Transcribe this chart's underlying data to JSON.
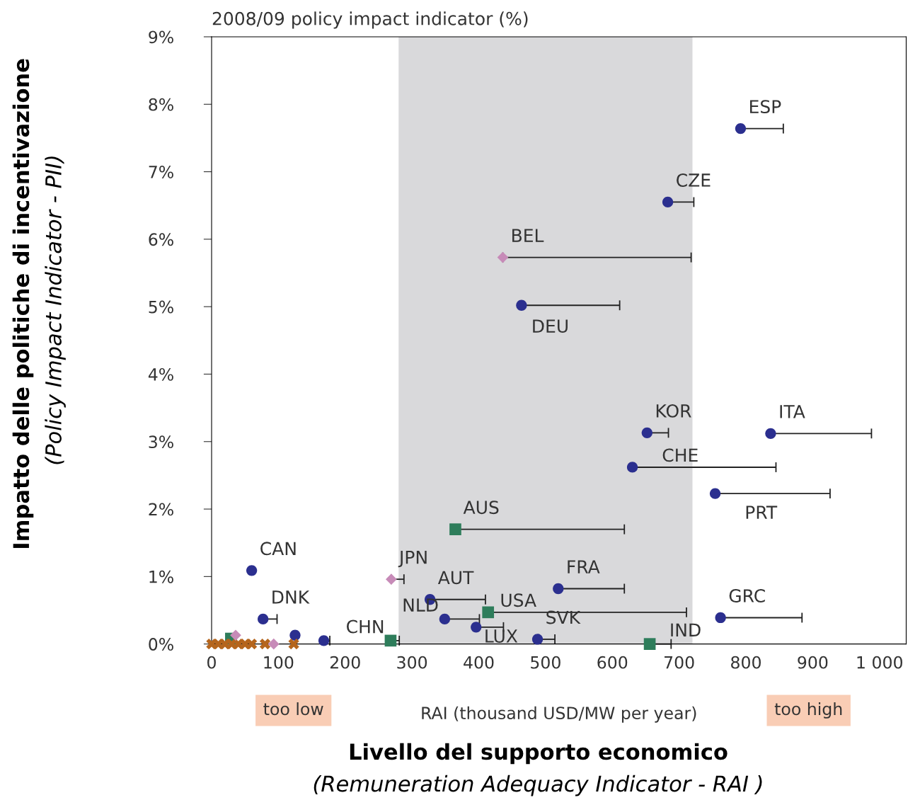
{
  "chart_data": {
    "type": "scatter",
    "title": "2008/09 policy impact indicator (%)",
    "xlabel": "RAI (thousand USD/MW per year)",
    "ylabel": "(Policy Impact Indicator - PII)",
    "xlim": [
      0,
      1040
    ],
    "ylim": [
      0,
      9
    ],
    "xticks": [
      0,
      100,
      200,
      300,
      400,
      500,
      600,
      700,
      800,
      900,
      {
        "value": 1000,
        "label": "1 000"
      }
    ],
    "yticks": [
      {
        "value": 0,
        "label": "0%"
      },
      {
        "value": 1,
        "label": "1%"
      },
      {
        "value": 2,
        "label": "2%"
      },
      {
        "value": 3,
        "label": "3%"
      },
      {
        "value": 4,
        "label": "4%"
      },
      {
        "value": 5,
        "label": "5%"
      },
      {
        "value": 6,
        "label": "6%"
      },
      {
        "value": 7,
        "label": "7%"
      },
      {
        "value": 8,
        "label": "8%"
      },
      {
        "value": 9,
        "label": "9%"
      }
    ],
    "grid": false,
    "bands": [
      {
        "axis": "x",
        "from": 280,
        "to": 720,
        "color": "#d9d9db"
      }
    ],
    "series": [
      {
        "color": "#2b2f8f",
        "marker": "circle",
        "x": [
          792,
          683,
          464,
          652,
          837,
          630,
          754,
          60,
          327,
          519,
          77,
          349,
          762,
          396,
          488,
          125,
          168
        ],
        "values": [
          7.64,
          6.55,
          5.02,
          3.13,
          3.12,
          2.62,
          2.23,
          1.09,
          0.66,
          0.82,
          0.37,
          0.37,
          0.39,
          0.25,
          0.07,
          0.13,
          0.05
        ],
        "xerrors": [
          [
            792,
            856
          ],
          [
            683,
            722
          ],
          [
            464,
            611
          ],
          [
            652,
            684
          ],
          [
            837,
            988
          ],
          [
            630,
            845
          ],
          [
            754,
            926
          ],
          null,
          [
            327,
            410
          ],
          [
            519,
            618
          ],
          [
            77,
            98
          ],
          [
            349,
            401
          ],
          [
            762,
            884
          ],
          [
            396,
            437
          ],
          [
            488,
            514
          ],
          null,
          [
            168,
            177
          ]
        ]
      },
      {
        "color": "#c78bb8",
        "marker": "diamond",
        "x": [
          436,
          269,
          36,
          93
        ],
        "values": [
          5.73,
          0.96,
          0.13,
          0
        ],
        "xerrors": [
          [
            436,
            718
          ],
          [
            269,
            288
          ],
          null,
          null
        ]
      },
      {
        "color": "#2e7d5b",
        "marker": "square",
        "x": [
          365,
          414,
          268,
          656,
          29
        ],
        "values": [
          1.7,
          0.47,
          0.05,
          0,
          0.08
        ],
        "xerrors": [
          [
            365,
            618
          ],
          [
            414,
            711
          ],
          [
            268,
            281
          ],
          [
            656,
            688
          ],
          null
        ]
      },
      {
        "color": "#b5651d",
        "marker": "cross",
        "x": [
          0,
          10,
          20,
          30,
          40,
          50,
          60,
          80,
          123
        ],
        "values": [
          0,
          0,
          0,
          0,
          0,
          0,
          0,
          0,
          0
        ]
      }
    ],
    "annotations": [
      {
        "text": "ESP",
        "x": 792,
        "y": 7.64
      },
      {
        "text": "CZE",
        "x": 683,
        "y": 6.55
      },
      {
        "text": "BEL",
        "x": 436,
        "y": 5.73
      },
      {
        "text": "DEU",
        "x": 464,
        "y": 5.02
      },
      {
        "text": "KOR",
        "x": 652,
        "y": 3.13
      },
      {
        "text": "ITA",
        "x": 837,
        "y": 3.12
      },
      {
        "text": "CHE",
        "x": 630,
        "y": 2.62
      },
      {
        "text": "PRT",
        "x": 754,
        "y": 2.23
      },
      {
        "text": "AUS",
        "x": 365,
        "y": 1.7
      },
      {
        "text": "CAN",
        "x": 60,
        "y": 1.09
      },
      {
        "text": "JPN",
        "x": 269,
        "y": 0.96
      },
      {
        "text": "AUT",
        "x": 327,
        "y": 0.66
      },
      {
        "text": "FRA",
        "x": 519,
        "y": 0.82
      },
      {
        "text": "USA",
        "x": 414,
        "y": 0.47
      },
      {
        "text": "DNK",
        "x": 77,
        "y": 0.37
      },
      {
        "text": "NLD",
        "x": 349,
        "y": 0.37
      },
      {
        "text": "GRC",
        "x": 762,
        "y": 0.39
      },
      {
        "text": "LUX",
        "x": 396,
        "y": 0.25
      },
      {
        "text": "SVK",
        "x": 488,
        "y": 0.07
      },
      {
        "text": "CHN",
        "x": 268,
        "y": 0.05
      },
      {
        "text": "IND",
        "x": 656,
        "y": 0
      },
      "too low",
      "too high",
      "Livello del supporto economico",
      "(Remuneration Adequacy Indicator - RAI )",
      "Impatto delle politiche di incentivazione"
    ]
  }
}
